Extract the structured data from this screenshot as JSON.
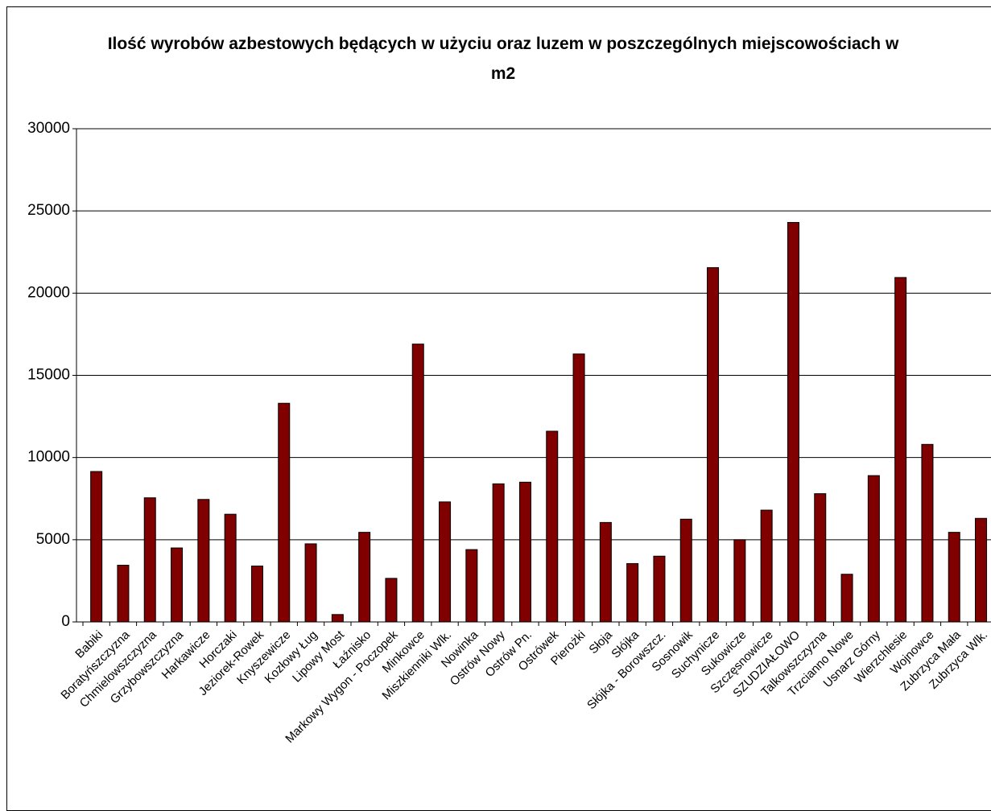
{
  "chart_data": {
    "type": "bar",
    "title": "Ilość wyrobów azbestowych będących w użyciu oraz luzem w poszczególnych miejscowościach w m2",
    "categories": [
      "Babiki",
      "Boratyńszczyzna",
      "Chmielowszczyzna",
      "Grzybowszczyzna",
      "Harkawicze",
      "Horczaki",
      "Jeziorek-Rowek",
      "Knyszewicze",
      "Kozłowy Ług",
      "Lipowy Most",
      "Łaźnisko",
      "Markowy Wygon - Poczopek",
      "Minkowce",
      "Miszkienniki Wlk.",
      "Nowinka",
      "Ostrów Nowy",
      "Ostrów Pn.",
      "Ostrówek",
      "Pierożki",
      "Słoja",
      "Słójka",
      "Słójka - Borowszcz.",
      "Sosnowik",
      "Suchynicze",
      "Sukowicze",
      "Szczęsnowicze",
      "SZUDZIAŁOWO",
      "Talkowszczyzna",
      "Trzcianno Nowe",
      "Usnarz Górny",
      "Wierzchlesie",
      "Wojnowce",
      "Zubrzyca Mała",
      "Zubrzyca Wlk."
    ],
    "values": [
      9150,
      3450,
      7550,
      4500,
      7450,
      6550,
      3400,
      13300,
      4750,
      450,
      5450,
      2650,
      16900,
      7300,
      4400,
      8400,
      8500,
      11600,
      16300,
      6050,
      3550,
      4000,
      6250,
      21550,
      5000,
      6800,
      24300,
      7800,
      2900,
      8900,
      20950,
      10800,
      5450,
      6300
    ],
    "color": "#800000",
    "ylim": [
      0,
      30000
    ],
    "yticks": [
      0,
      5000,
      10000,
      15000,
      20000,
      25000,
      30000
    ],
    "grid": true
  }
}
